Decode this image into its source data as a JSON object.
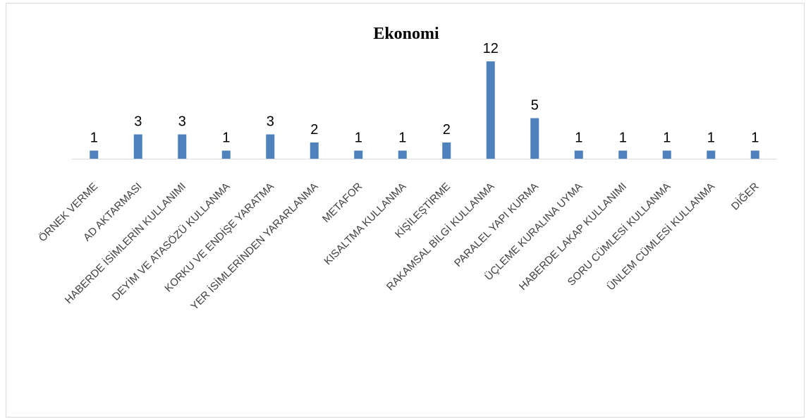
{
  "chart_data": {
    "type": "bar",
    "title": "Ekonomi",
    "categories": [
      "ÖRNEK VERME",
      "AD AKTARMASI",
      "HABERDE İSİMLERİN KULLANIMI",
      "DEYİM VE ATASÖZÜ KULLANMA",
      "KORKU VE ENDİŞE YARATMA",
      "YER İSİMLERİNDEN YARARLANMA",
      "METAFOR",
      "KISALTMA KULLANMA",
      "KİŞİLEŞTİRME",
      "RAKAMSAL BİLGİ KULLANMA",
      "PARALEL YAPI KURMA",
      "ÜÇLEME KURALINA UYMA",
      "HABERDE LAKAP KULLANIMI",
      "SORU CÜMLESİ KULLANMA",
      "ÜNLEM CÜMLESİ KULLANMA",
      "DİĞER"
    ],
    "values": [
      1,
      3,
      3,
      1,
      3,
      2,
      1,
      1,
      2,
      12,
      5,
      1,
      1,
      1,
      1,
      1
    ],
    "data_labels": true,
    "xlabel": "",
    "ylabel": "",
    "ylim": [
      0,
      12
    ],
    "grid": false,
    "legend": "none",
    "colors": {
      "bar": "#4f81bd",
      "axis": "#d9d9d9",
      "label": "#404040"
    }
  }
}
